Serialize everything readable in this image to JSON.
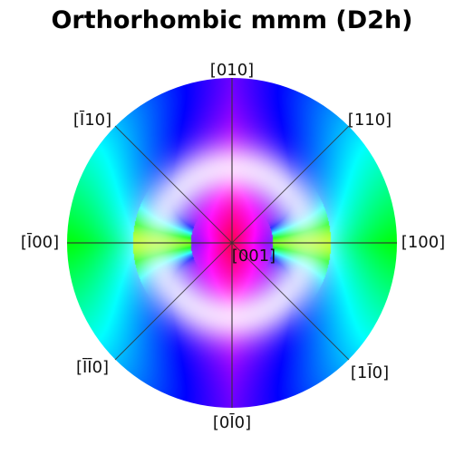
{
  "title": "Orthorhombic mmm (D2h)",
  "labels": {
    "n010": "[010]",
    "n110": "[110]",
    "n100": "[100]",
    "n1m10": "[1̅1̄̅0]",
    "n0m10": "[0̅1̄̅0]",
    "nm1m10": "[1̄ 1̄ 0]",
    "nm100": "[1̄ 0 0]",
    "nm110": "[1̄ 1 0]",
    "n001": "[001]"
  },
  "labels_text": {
    "n010": "[010]",
    "n110": "[110]",
    "n100": "[100]",
    "n1m10": "[1Ī0]",
    "n0m10": "[0Ī0]",
    "nm1m10": "[ĪĪ0]",
    "nm100": "[Ī00]",
    "nm110": "[Ī10]",
    "n001": "[001]"
  }
}
